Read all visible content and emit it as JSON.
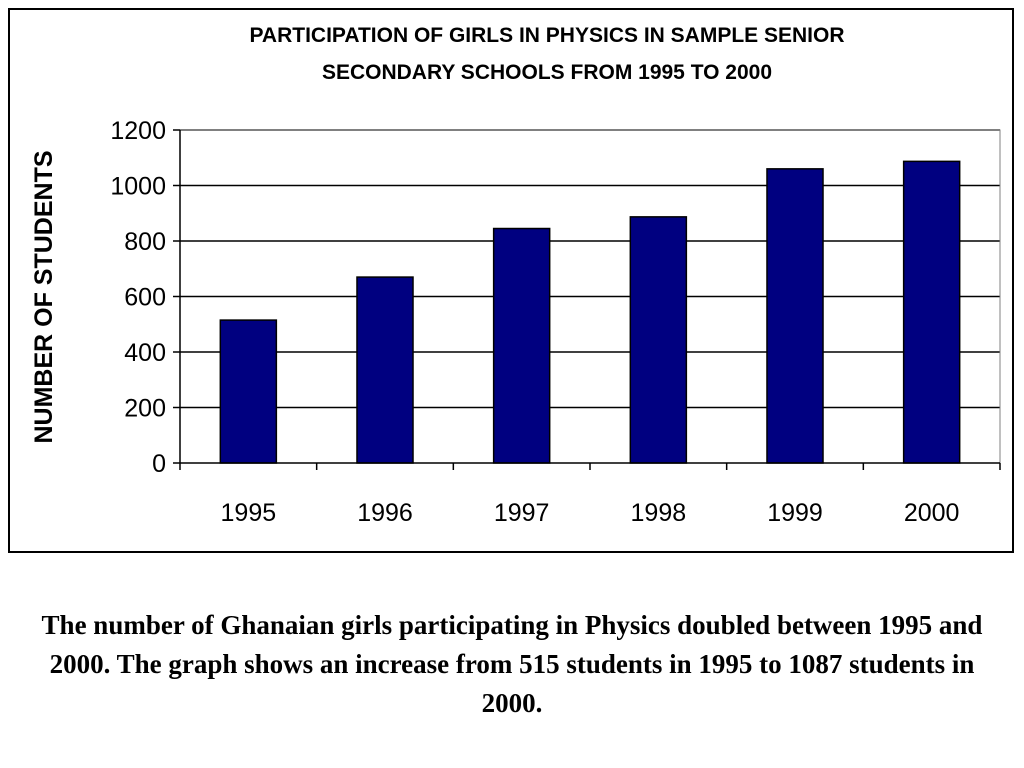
{
  "chart_data": {
    "type": "bar",
    "title": [
      "PARTICIPATION OF GIRLS IN PHYSICS IN SAMPLE SENIOR",
      "SECONDARY SCHOOLS FROM 1995 TO 2000"
    ],
    "ylabel": "NUMBER OF STUDENTS",
    "xlabel": "",
    "categories": [
      "1995",
      "1996",
      "1997",
      "1998",
      "1999",
      "2000"
    ],
    "values": [
      515,
      670,
      845,
      887,
      1060,
      1087
    ],
    "ylim": [
      0,
      1200
    ],
    "yticks": [
      0,
      200,
      400,
      600,
      800,
      1000,
      1200
    ],
    "grid": "horizontal",
    "legend": "none",
    "bar_color": "#000080"
  },
  "caption": "The number of Ghanaian girls participating in Physics doubled between 1995 and 2000.  The graph shows an increase from 515 students in 1995 to 1087 students in 2000."
}
